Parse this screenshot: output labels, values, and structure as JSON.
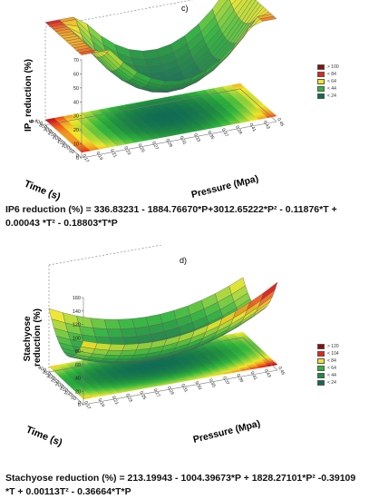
{
  "chart_data": [
    {
      "type": "surface3d",
      "panel_label": "c)",
      "zlabel_main": "IP",
      "zlabel_sub": "6",
      "zlabel_rest": " reduction (%)",
      "xlabel": "Pressure (Mpa)",
      "ylabel": "Time (s)",
      "z_ticks": [
        "0",
        "10",
        "20",
        "30",
        "40",
        "50",
        "60",
        "70"
      ],
      "zlim": [
        0,
        70
      ],
      "time_ticks": [
        "0",
        "50",
        "100",
        "150",
        "200",
        "250",
        "300",
        "350",
        "400"
      ],
      "pressure_ticks": [
        "0.17",
        "0.19",
        "0.21",
        "0.23",
        "0.25",
        "0.27",
        "0.29",
        "0.31",
        "0.33",
        "0.35",
        "0.37",
        "0.39",
        "0.41",
        "0.43",
        "0.45"
      ],
      "pressure_range": [
        0.17,
        0.45
      ],
      "time_range": [
        0,
        400
      ],
      "legend": [
        {
          "label": "> 100",
          "color": "#8b0f0f"
        },
        {
          "label": "< 84",
          "color": "#e5231b"
        },
        {
          "label": "< 64",
          "color": "#f0e62a"
        },
        {
          "label": "< 44",
          "color": "#30b43c"
        },
        {
          "label": "< 24",
          "color": "#106b52"
        }
      ],
      "equation": {
        "b0": 336.83231,
        "bP": -1884.7667,
        "bP2": 3012.65222,
        "bT": -0.11876,
        "bT2": 0.00043,
        "bTP": -0.18803
      },
      "equation_text": "IP6 reduction (%) = 336.83231 - 1884.76670*P+3012.65222*P² - 0.11876*T + 0.00043 *T² - 0.18803*T*P"
    },
    {
      "type": "surface3d",
      "panel_label": "d)",
      "zlabel_line1": "Stachyose",
      "zlabel_line2": "reduction (%)",
      "xlabel": "Pressure (Mpa)",
      "ylabel": "Time (s)",
      "z_ticks": [
        "0",
        "20",
        "40",
        "60",
        "80",
        "100",
        "120",
        "140",
        "160"
      ],
      "zlim": [
        0,
        160
      ],
      "time_ticks": [
        "0",
        "50",
        "100",
        "150",
        "200",
        "250",
        "300",
        "350",
        "400"
      ],
      "pressure_ticks": [
        "0.17",
        "0.19",
        "0.21",
        "0.23",
        "0.25",
        "0.27",
        "0.29",
        "0.31",
        "0.33",
        "0.35",
        "0.37",
        "0.39",
        "0.41",
        "0.43",
        "0.45"
      ],
      "pressure_range": [
        0.17,
        0.45
      ],
      "time_range": [
        0,
        400
      ],
      "legend": [
        {
          "label": "> 120",
          "color": "#8b0f0f"
        },
        {
          "label": "< 104",
          "color": "#e5231b"
        },
        {
          "label": "< 84",
          "color": "#f0e62a"
        },
        {
          "label": "< 64",
          "color": "#30b43c"
        },
        {
          "label": "< 44",
          "color": "#1f8a40"
        },
        {
          "label": "< 24",
          "color": "#106b52"
        }
      ],
      "equation": {
        "b0": 213.19943,
        "bP": -1004.39673,
        "bP2": 1828.27101,
        "bT": -0.39109,
        "bT2": 0.00113,
        "bTP": -0.36664
      },
      "equation_text": "Stachyose reduction (%) = 213.19943 - 1004.39673*P + 1828.27101*P² -0.39109 *T + 0.00113T² - 0.36664*T*P"
    }
  ]
}
